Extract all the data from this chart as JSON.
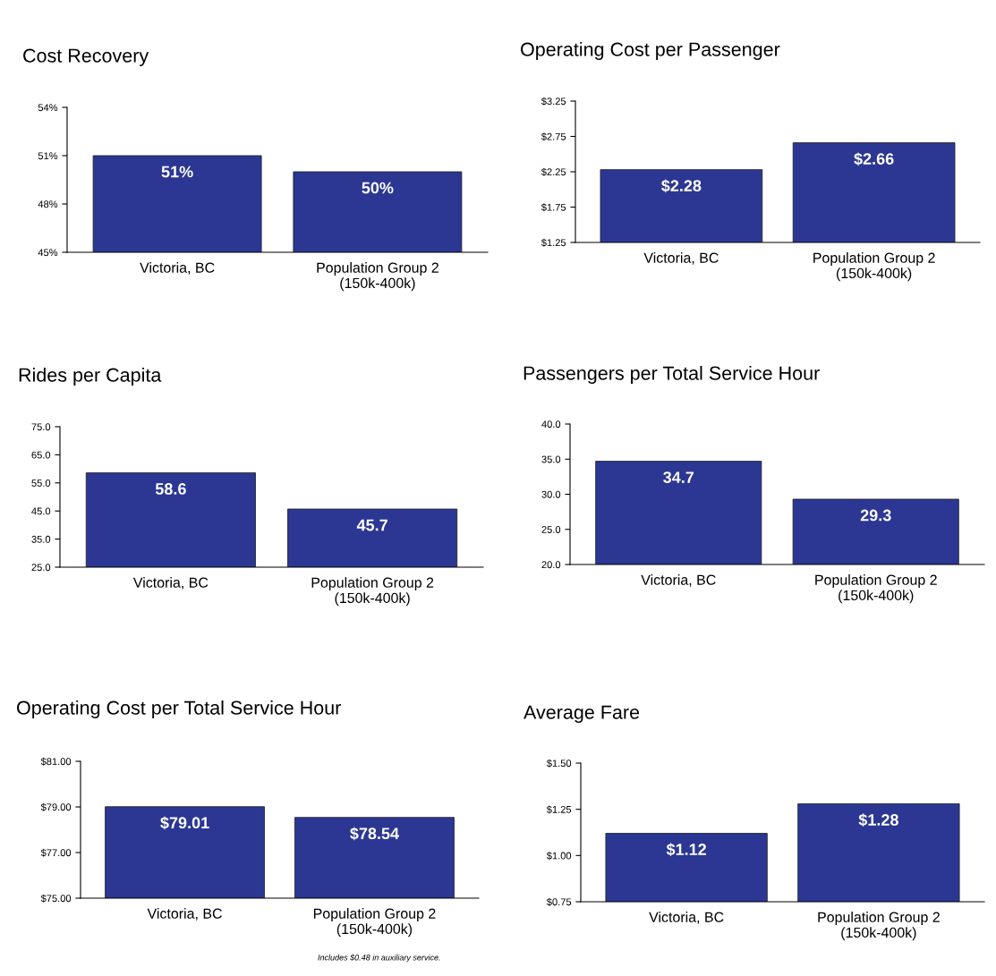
{
  "chart_data": [
    {
      "type": "bar",
      "title": "Cost Recovery",
      "categories": [
        "Victoria, BC",
        "Population Group 2\n(150k-400k)"
      ],
      "values": [
        51,
        50
      ],
      "color": "#2b3793",
      "value_labels": [
        "51%",
        "50%"
      ],
      "ylim": [
        45,
        54
      ],
      "yticks": [
        {
          "value": 45,
          "label": "45%"
        },
        {
          "value": 48,
          "label": "48%"
        },
        {
          "value": 51,
          "label": "51%"
        },
        {
          "value": 54,
          "label": "54%"
        }
      ],
      "grid": false
    },
    {
      "type": "bar",
      "title": "Operating Cost per Passenger",
      "categories": [
        "Victoria, BC",
        "Population Group 2\n(150k-400k)"
      ],
      "values": [
        2.28,
        2.66
      ],
      "color": "#2b3793",
      "value_labels": [
        "$2.28",
        "$2.66"
      ],
      "ylim": [
        1.25,
        3.25
      ],
      "yticks": [
        {
          "value": 1.25,
          "label": "$1.25"
        },
        {
          "value": 1.75,
          "label": "$1.75"
        },
        {
          "value": 2.25,
          "label": "$2.25"
        },
        {
          "value": 2.75,
          "label": "$2.75"
        },
        {
          "value": 3.25,
          "label": "$3.25"
        }
      ],
      "grid": false
    },
    {
      "type": "bar",
      "title": "Rides per Capita",
      "categories": [
        "Victoria, BC",
        "Population Group 2\n(150k-400k)"
      ],
      "values": [
        58.6,
        45.7
      ],
      "color": "#2b3793",
      "value_labels": [
        "58.6",
        "45.7"
      ],
      "ylim": [
        25,
        75
      ],
      "yticks": [
        {
          "value": 25,
          "label": "25.0"
        },
        {
          "value": 35,
          "label": "35.0"
        },
        {
          "value": 45,
          "label": "45.0"
        },
        {
          "value": 55,
          "label": "55.0"
        },
        {
          "value": 65,
          "label": "65.0"
        },
        {
          "value": 75,
          "label": "75.0"
        }
      ],
      "grid": false
    },
    {
      "type": "bar",
      "title": "Passengers per Total Service Hour",
      "categories": [
        "Victoria, BC",
        "Population Group 2\n(150k-400k)"
      ],
      "values": [
        34.7,
        29.3
      ],
      "color": "#2b3793",
      "value_labels": [
        "34.7",
        "29.3"
      ],
      "ylim": [
        20,
        40
      ],
      "yticks": [
        {
          "value": 20,
          "label": "20.0"
        },
        {
          "value": 25,
          "label": "25.0"
        },
        {
          "value": 30,
          "label": "30.0"
        },
        {
          "value": 35,
          "label": "35.0"
        },
        {
          "value": 40,
          "label": "40.0"
        }
      ],
      "grid": false
    },
    {
      "type": "bar",
      "title": "Operating Cost per Total Service Hour",
      "categories": [
        "Victoria, BC",
        "Population Group 2\n(150k-400k)"
      ],
      "values": [
        79.01,
        78.54
      ],
      "color": "#2b3793",
      "value_labels": [
        "$79.01",
        "$78.54"
      ],
      "ylim": [
        75,
        81
      ],
      "yticks": [
        {
          "value": 75,
          "label": "$75.00"
        },
        {
          "value": 77,
          "label": "$77.00"
        },
        {
          "value": 79,
          "label": "$79.00"
        },
        {
          "value": 81,
          "label": "$81.00"
        }
      ],
      "grid": false,
      "annotations": [
        "Includes $0.48 in auxiliary service."
      ]
    },
    {
      "type": "bar",
      "title": "Average Fare",
      "categories": [
        "Victoria, BC",
        "Population Group 2\n(150k-400k)"
      ],
      "values": [
        1.12,
        1.28
      ],
      "color": "#2b3793",
      "value_labels": [
        "$1.12",
        "$1.28"
      ],
      "ylim": [
        0.75,
        1.5
      ],
      "yticks": [
        {
          "value": 0.75,
          "label": "$0.75"
        },
        {
          "value": 1.0,
          "label": "$1.00"
        },
        {
          "value": 1.25,
          "label": "$1.25"
        },
        {
          "value": 1.5,
          "label": "$1.50"
        }
      ],
      "grid": false
    }
  ]
}
